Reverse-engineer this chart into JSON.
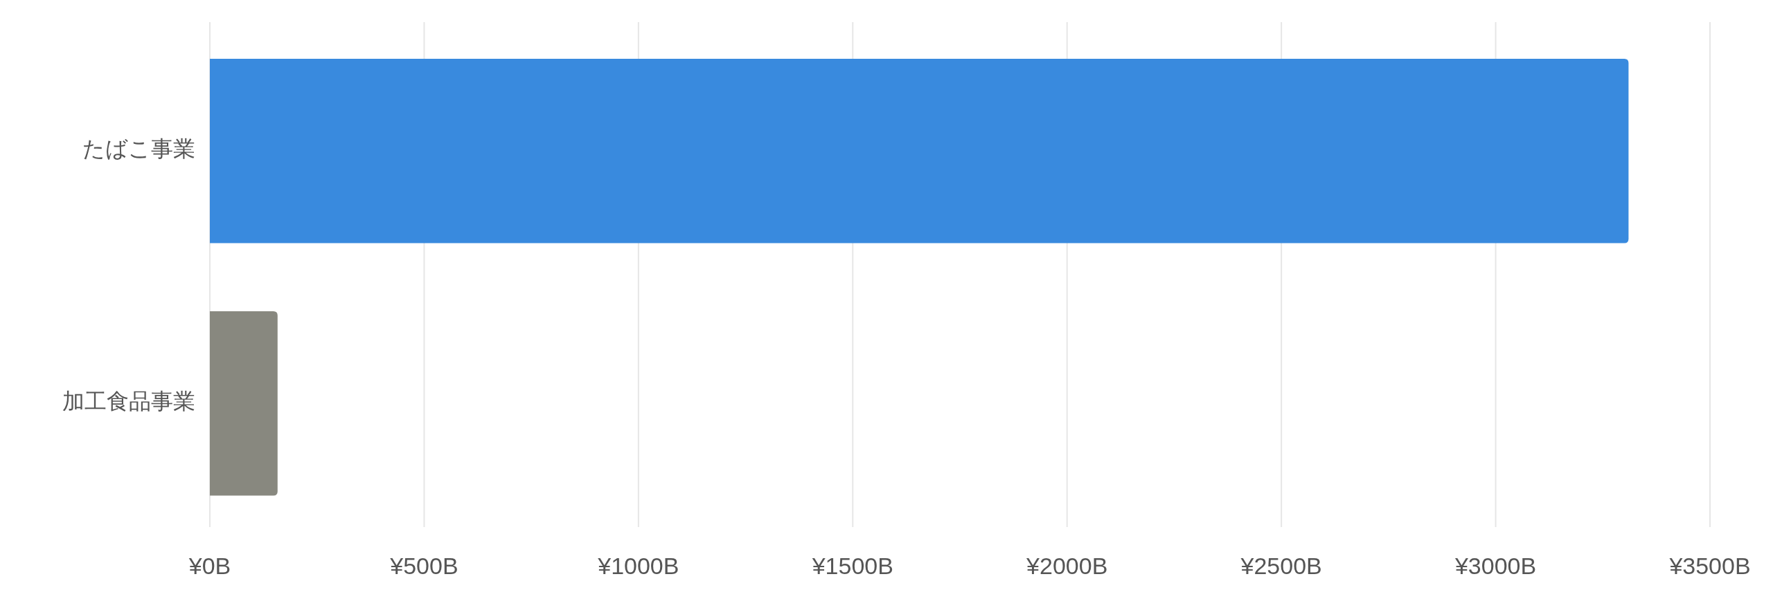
{
  "chart_data": {
    "type": "bar",
    "orientation": "horizontal",
    "categories": [
      "たばこ事業",
      "加工食品事業"
    ],
    "values": [
      3310,
      158
    ],
    "colors": [
      "#398ade",
      "#88887f"
    ],
    "xlim": [
      0,
      3500
    ],
    "xticks": [
      {
        "value": 0,
        "label": "¥0B"
      },
      {
        "value": 500,
        "label": "¥500B"
      },
      {
        "value": 1000,
        "label": "¥1000B"
      },
      {
        "value": 1500,
        "label": "¥1500B"
      },
      {
        "value": 2000,
        "label": "¥2000B"
      },
      {
        "value": 2500,
        "label": "¥2500B"
      },
      {
        "value": 3000,
        "label": "¥3000B"
      },
      {
        "value": 3500,
        "label": "¥3500B"
      }
    ],
    "grid": "x"
  }
}
